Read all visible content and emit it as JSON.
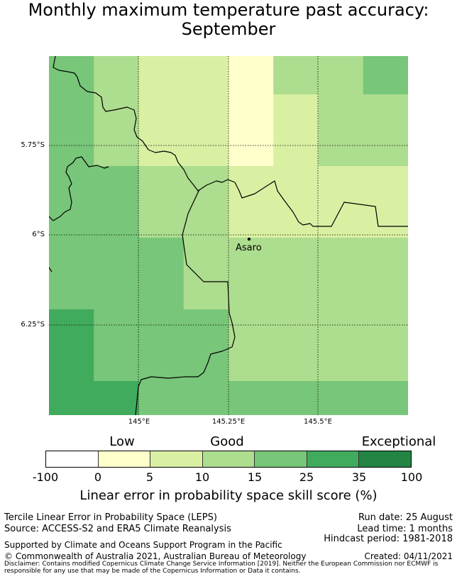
{
  "title": {
    "line1": "Monthly maximum temperature past accuracy:",
    "line2": "September"
  },
  "map": {
    "lat_ticks": [
      "5.75°S",
      "6°S",
      "6.25°S"
    ],
    "lon_ticks": [
      "145°E",
      "145.25°E",
      "145.5°E"
    ],
    "place_label": "Asaro",
    "grid_rows": [
      [
        3,
        2,
        1,
        1,
        0,
        2,
        2,
        3
      ],
      [
        3,
        2,
        1,
        1,
        0,
        1,
        2,
        2
      ],
      [
        3,
        3,
        2,
        2,
        1,
        1,
        1,
        1
      ],
      [
        3,
        3,
        3,
        2,
        2,
        2,
        2,
        2
      ],
      [
        4,
        3,
        3,
        3,
        2,
        2,
        2,
        2
      ],
      [
        4,
        4,
        3,
        3,
        3,
        3,
        3,
        3
      ]
    ]
  },
  "category_labels": [
    "Low",
    "Good",
    "Exceptional"
  ],
  "colorbar": {
    "colors": [
      "#ffffff",
      "#ffffcc",
      "#d9f0a3",
      "#addd8e",
      "#78c679",
      "#41ab5d",
      "#238443"
    ],
    "ticks": [
      "-100",
      "0",
      "5",
      "10",
      "15",
      "25",
      "35",
      "100"
    ],
    "label": "Linear error in probability space skill score (%)"
  },
  "footer": {
    "line1_left": "Tercile Linear Error in Probability Space (LEPS)",
    "line2_left": "Source: ACCESS-S2 and ERA5 Climate Reanalysis",
    "support": "Supported by Climate and Oceans Support Program in the Pacific",
    "copyright": "© Commonwealth of Australia 2021, Australian Bureau of Meteorology",
    "run_date": "Run date: 25 August",
    "lead_time": "Lead time: 1 months",
    "hindcast": "Hindcast period: 1981-2018",
    "created": "Created: 04/11/2021",
    "disclaimer": "Disclaimer: Contains modified Copernicus Climate Change Service Information [2019]. Neither the European Commission nor ECMWF is responsible for any use that may be made of the Copernicus Information or Data it contains."
  }
}
